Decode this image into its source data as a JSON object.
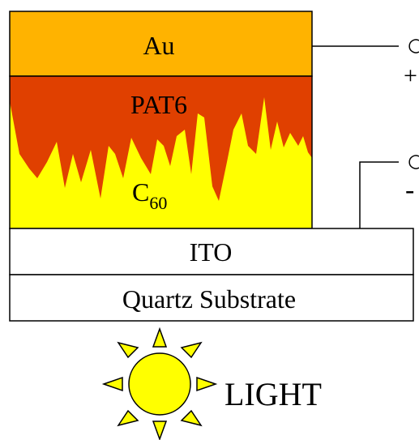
{
  "layers": {
    "au": "Au",
    "pat6": "PAT6",
    "c60_base": "C",
    "c60_sub": "60",
    "ito": "ITO",
    "substrate": "Quartz Substrate"
  },
  "terminals": {
    "positive": "+",
    "negative": "-"
  },
  "light_label": "LIGHT",
  "colors": {
    "au": "#FFB300",
    "pat6": "#E04000",
    "c60": "#FFFF00",
    "sun": "#FFFF00",
    "outline": "#000000"
  }
}
